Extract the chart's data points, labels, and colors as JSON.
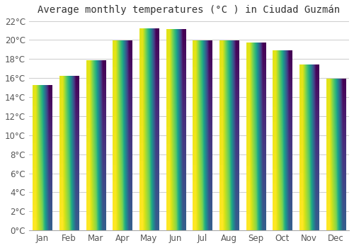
{
  "title": "Average monthly temperatures (°C ) in Ciudad Guzmán",
  "months": [
    "Jan",
    "Feb",
    "Mar",
    "Apr",
    "May",
    "Jun",
    "Jul",
    "Aug",
    "Sep",
    "Oct",
    "Nov",
    "Dec"
  ],
  "temperatures": [
    15.2,
    16.2,
    17.8,
    19.9,
    21.2,
    21.1,
    19.9,
    19.9,
    19.7,
    18.9,
    17.4,
    15.9
  ],
  "bar_color_bottom": "#F5A623",
  "bar_color_top": "#FFD966",
  "ylim": [
    0,
    22
  ],
  "ytick_step": 2,
  "background_color": "#ffffff",
  "grid_color": "#cccccc",
  "title_fontsize": 10,
  "tick_fontsize": 8.5
}
